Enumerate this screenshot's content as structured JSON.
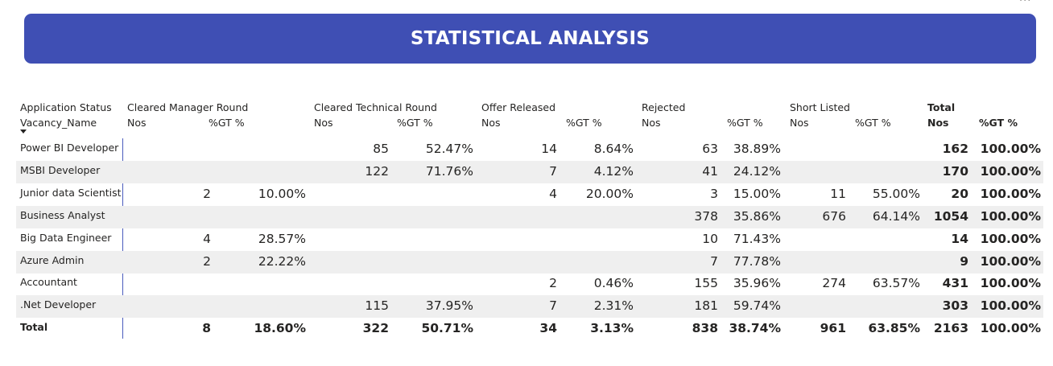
{
  "title": "STATISTICAL ANALYSIS",
  "more_options": "···",
  "headers": {
    "row_field_top": "Application Status",
    "row_field": "Vacancy_Name",
    "groups": [
      "Cleared Manager Round",
      "Cleared Technical Round",
      "Offer Released",
      "Rejected",
      "Short Listed",
      "Total"
    ],
    "measures": [
      "Nos",
      "%GT %"
    ]
  },
  "rows": [
    {
      "name": "Power BI Developer",
      "cells": [
        "",
        "",
        "85",
        "52.47%",
        "14",
        "8.64%",
        "63",
        "38.89%",
        "",
        "",
        "162",
        "100.00%"
      ]
    },
    {
      "name": "MSBI Developer",
      "cells": [
        "",
        "",
        "122",
        "71.76%",
        "7",
        "4.12%",
        "41",
        "24.12%",
        "",
        "",
        "170",
        "100.00%"
      ]
    },
    {
      "name": "Junior data Scientist",
      "cells": [
        "2",
        "10.00%",
        "",
        "",
        "4",
        "20.00%",
        "3",
        "15.00%",
        "11",
        "55.00%",
        "20",
        "100.00%"
      ]
    },
    {
      "name": "Business Analyst",
      "cells": [
        "",
        "",
        "",
        "",
        "",
        "",
        "378",
        "35.86%",
        "676",
        "64.14%",
        "1054",
        "100.00%"
      ]
    },
    {
      "name": "Big Data Engineer",
      "cells": [
        "4",
        "28.57%",
        "",
        "",
        "",
        "",
        "10",
        "71.43%",
        "",
        "",
        "14",
        "100.00%"
      ]
    },
    {
      "name": "Azure Admin",
      "cells": [
        "2",
        "22.22%",
        "",
        "",
        "",
        "",
        "7",
        "77.78%",
        "",
        "",
        "9",
        "100.00%"
      ]
    },
    {
      "name": "Accountant",
      "cells": [
        "",
        "",
        "",
        "",
        "2",
        "0.46%",
        "155",
        "35.96%",
        "274",
        "63.57%",
        "431",
        "100.00%"
      ]
    },
    {
      "name": ".Net Developer",
      "cells": [
        "",
        "",
        "115",
        "37.95%",
        "7",
        "2.31%",
        "181",
        "59.74%",
        "",
        "",
        "303",
        "100.00%"
      ]
    }
  ],
  "total_row": {
    "name": "Total",
    "cells": [
      "8",
      "18.60%",
      "322",
      "50.71%",
      "34",
      "3.13%",
      "838",
      "38.74%",
      "961",
      "63.85%",
      "2163",
      "100.00%"
    ]
  }
}
